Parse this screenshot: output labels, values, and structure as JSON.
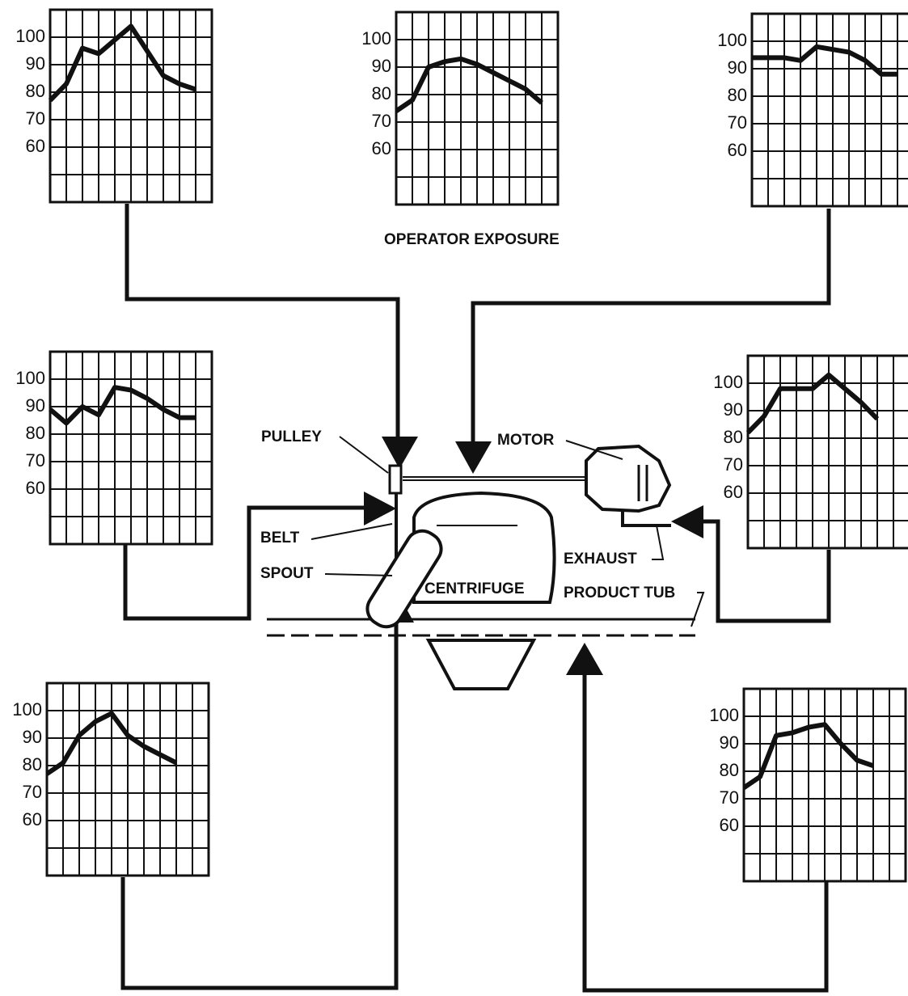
{
  "caption": "OPERATOR EXPOSURE",
  "labels": {
    "pulley": "PULLEY",
    "motor": "MOTOR",
    "belt": "BELT",
    "spout": "SPOUT",
    "exhaust": "EXHAUST",
    "centrifuge": "CENTRIFUGE",
    "product_tub": "PRODUCT TUB"
  },
  "chart_data": [
    {
      "type": "line",
      "values": [
        77,
        83,
        96,
        94,
        99,
        104,
        95,
        86,
        83,
        81
      ],
      "ylim": [
        40,
        110
      ],
      "yticks": [
        60,
        70,
        80,
        90,
        100
      ],
      "grid": true,
      "color": "#111111"
    },
    {
      "type": "line",
      "values": [
        74,
        78,
        90,
        92,
        93,
        91,
        88,
        85,
        82,
        77
      ],
      "ylim": [
        40,
        110
      ],
      "yticks": [
        60,
        70,
        80,
        90,
        100
      ],
      "grid": true,
      "color": "#111111"
    },
    {
      "type": "line",
      "values": [
        94,
        94,
        94,
        93,
        98,
        97,
        96,
        93,
        88,
        88
      ],
      "ylim": [
        40,
        110
      ],
      "yticks": [
        60,
        70,
        80,
        90,
        100
      ],
      "grid": true,
      "color": "#111111"
    },
    {
      "type": "line",
      "values": [
        89,
        84,
        90,
        87,
        97,
        96,
        93,
        89,
        86,
        86
      ],
      "ylim": [
        40,
        110
      ],
      "yticks": [
        60,
        70,
        80,
        90,
        100
      ],
      "grid": true,
      "color": "#111111"
    },
    {
      "type": "line",
      "values": [
        82,
        88,
        98,
        98,
        98,
        103,
        98,
        93,
        87
      ],
      "ylim": [
        40,
        110
      ],
      "yticks": [
        60,
        70,
        80,
        90,
        100
      ],
      "grid": true,
      "color": "#111111"
    },
    {
      "type": "line",
      "values": [
        77,
        81,
        91,
        96,
        99,
        91,
        87,
        84,
        81
      ],
      "ylim": [
        40,
        110
      ],
      "yticks": [
        60,
        70,
        80,
        90,
        100
      ],
      "grid": true,
      "color": "#111111"
    },
    {
      "type": "line",
      "values": [
        74,
        78,
        93,
        94,
        96,
        97,
        90,
        84,
        82
      ],
      "ylim": [
        40,
        110
      ],
      "yticks": [
        60,
        70,
        80,
        90,
        100
      ],
      "grid": true,
      "color": "#111111"
    }
  ]
}
